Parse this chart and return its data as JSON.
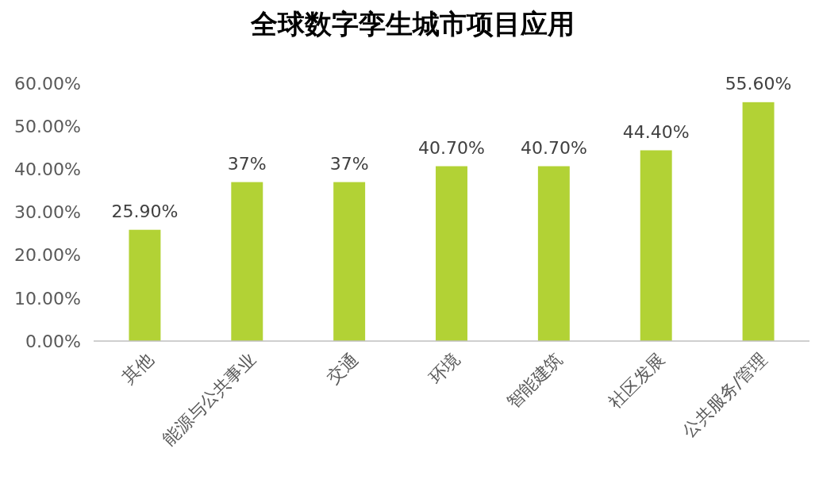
{
  "chart_data": {
    "type": "bar",
    "title": "全球数字孪生城市项目应用",
    "categories": [
      "其他",
      "能源与公共事业",
      "交通",
      "环境",
      "智能建筑",
      "社区发展",
      "公共服务/管理"
    ],
    "values": [
      25.9,
      37,
      37,
      40.7,
      40.7,
      44.4,
      55.6
    ],
    "value_labels": [
      "25.90%",
      "37%",
      "37%",
      "40.70%",
      "40.70%",
      "44.40%",
      "55.60%"
    ],
    "color": "#b2d235",
    "ylim": [
      0,
      60
    ],
    "yticks": [
      {
        "value": 0,
        "label": "0.00%"
      },
      {
        "value": 10,
        "label": "10.00%"
      },
      {
        "value": 20,
        "label": "20.00%"
      },
      {
        "value": 30,
        "label": "30.00%"
      },
      {
        "value": 40,
        "label": "40.00%"
      },
      {
        "value": 50,
        "label": "50.00%"
      },
      {
        "value": 60,
        "label": "60.00%"
      }
    ],
    "grid": false
  }
}
